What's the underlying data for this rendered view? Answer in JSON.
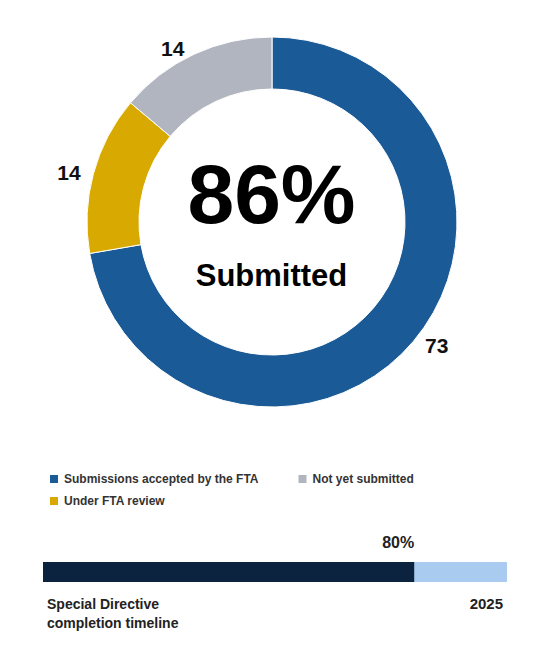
{
  "chart_data": [
    {
      "type": "pie",
      "categories": [
        "Submissions accepted by the FTA",
        "Under FTA review",
        "Not yet submitted"
      ],
      "values": [
        73,
        14,
        14
      ],
      "colors": [
        "#1a5a96",
        "#d8a900",
        "#b1b5bf"
      ],
      "data_labels": true,
      "legend": "bottom",
      "center_value": 86,
      "center_value_label": "86%",
      "center_label": "Submitted"
    },
    {
      "type": "bar",
      "orientation": "horizontal",
      "values": [
        80
      ],
      "value_labels": [
        "80%"
      ],
      "data_labels": true,
      "xlim": [
        0,
        100
      ],
      "tick_labels": false,
      "color": "#0c2340",
      "title": "Special Directive completion timeline",
      "annotation": "2025"
    }
  ]
}
